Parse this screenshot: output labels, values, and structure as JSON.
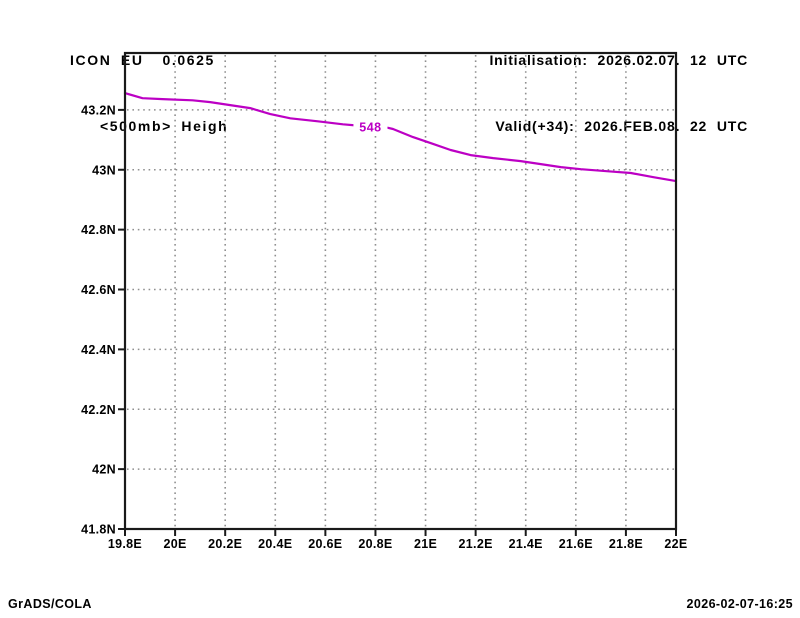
{
  "header": {
    "model": "ICON EU  0.0625",
    "field": "<500mb> Heigh",
    "init": "Initialisation: 2026.02.07. 12 UTC",
    "valid": "Valid(+34): 2026.FEB.08. 22 UTC"
  },
  "footer": {
    "credit": "GrADS/COLA",
    "timestamp": "2026-02-07-16:25"
  },
  "colors": {
    "contour": "#bc00c4",
    "grid": "#8f8f8f",
    "frame": "#1a1a1a",
    "text": "#000000",
    "background": "#ffffff"
  },
  "chart_data": {
    "type": "line",
    "title": "<500mb> Heigh",
    "subtitle": "ICON EU  0.0625",
    "xlabel": "",
    "ylabel": "",
    "xlim": [
      19.8,
      22.0
    ],
    "ylim": [
      41.8,
      43.39
    ],
    "grid": "dotted",
    "legend": "none",
    "x_ticks": [
      {
        "value": 19.8,
        "label": "19.8E"
      },
      {
        "value": 20.0,
        "label": "20E"
      },
      {
        "value": 20.2,
        "label": "20.2E"
      },
      {
        "value": 20.4,
        "label": "20.4E"
      },
      {
        "value": 20.6,
        "label": "20.6E"
      },
      {
        "value": 20.8,
        "label": "20.8E"
      },
      {
        "value": 21.0,
        "label": "21E"
      },
      {
        "value": 21.2,
        "label": "21.2E"
      },
      {
        "value": 21.4,
        "label": "21.4E"
      },
      {
        "value": 21.6,
        "label": "21.6E"
      },
      {
        "value": 21.8,
        "label": "21.8E"
      },
      {
        "value": 22.0,
        "label": "22E"
      }
    ],
    "y_ticks": [
      {
        "value": 41.8,
        "label": "41.8N"
      },
      {
        "value": 42.0,
        "label": "42N"
      },
      {
        "value": 42.2,
        "label": "42.2N"
      },
      {
        "value": 42.4,
        "label": "42.4N"
      },
      {
        "value": 42.6,
        "label": "42.6N"
      },
      {
        "value": 42.8,
        "label": "42.8N"
      },
      {
        "value": 43.0,
        "label": "43N"
      },
      {
        "value": 43.2,
        "label": "43.2N"
      }
    ],
    "series": [
      {
        "name": "500mb-height-contour",
        "contour_label": "548",
        "label_at": {
          "lon": 20.78,
          "lat": 43.142
        },
        "label_gap": [
          20.73,
          20.84
        ],
        "color": "#bc00c4",
        "points_lonlat": [
          [
            19.8,
            43.256
          ],
          [
            19.87,
            43.239
          ],
          [
            19.95,
            43.236
          ],
          [
            20.07,
            43.232
          ],
          [
            20.14,
            43.226
          ],
          [
            20.22,
            43.216
          ],
          [
            20.3,
            43.206
          ],
          [
            20.38,
            43.186
          ],
          [
            20.46,
            43.172
          ],
          [
            20.57,
            43.162
          ],
          [
            20.67,
            43.152
          ],
          [
            20.72,
            43.148
          ],
          [
            20.85,
            43.14
          ],
          [
            20.87,
            43.136
          ],
          [
            20.95,
            43.109
          ],
          [
            21.02,
            43.089
          ],
          [
            21.1,
            43.066
          ],
          [
            21.18,
            43.049
          ],
          [
            21.27,
            43.039
          ],
          [
            21.38,
            43.029
          ],
          [
            21.46,
            43.019
          ],
          [
            21.54,
            43.009
          ],
          [
            21.62,
            43.002
          ],
          [
            21.73,
            42.995
          ],
          [
            21.82,
            42.989
          ],
          [
            21.91,
            42.975
          ],
          [
            22.0,
            42.962
          ]
        ]
      }
    ]
  }
}
